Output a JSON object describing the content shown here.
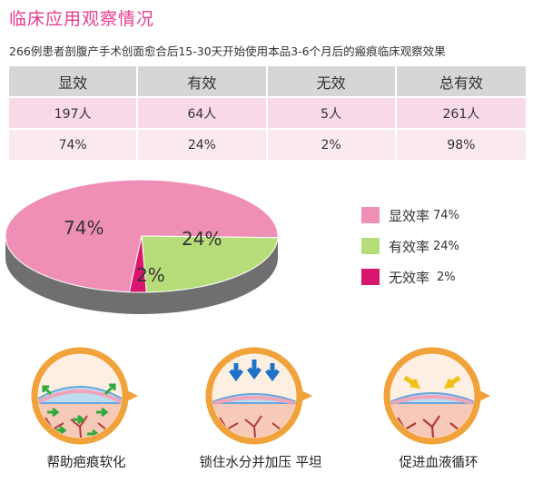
{
  "header": {
    "title": "临床应用观察情况",
    "subtitle": "266例患者剖腹产手术创面愈合后15-30天开始使用本品3-6个月后的瘢痕临床观察效果"
  },
  "table": {
    "columns": [
      "显效",
      "有效",
      "无效",
      "总有效"
    ],
    "rows": [
      [
        "197人",
        "64人",
        "5人",
        "261人"
      ],
      [
        "74%",
        "24%",
        "2%",
        "98%"
      ]
    ]
  },
  "chart_data": {
    "type": "pie",
    "slices": [
      {
        "label": "74%",
        "value": 74,
        "color": "#ef8fb6"
      },
      {
        "label": "24%",
        "value": 24,
        "color": "#b6dd7a"
      },
      {
        "label": "2%",
        "value": 2,
        "color": "#d8166e"
      }
    ],
    "legend": [
      {
        "name": "显效率",
        "value": "74%",
        "color": "#ef8fb6"
      },
      {
        "name": "有效率",
        "value": "24%",
        "color": "#b6dd7a"
      },
      {
        "name": "无效率",
        "value": "2%",
        "color": "#d8166e"
      }
    ],
    "legend_position": "right"
  },
  "icons": [
    {
      "icon": "scar-softening-icon",
      "label": "帮助疤痕软化"
    },
    {
      "icon": "pressure-lock-icon",
      "label": "锁住水分并加压 平坦"
    },
    {
      "icon": "blood-circulation-icon",
      "label": "促进血液循环"
    }
  ],
  "colors": {
    "title": "#e83d8e",
    "table_header": "#d6d6d6",
    "table_row_1": "#f8d9e7",
    "table_row_2": "#fbe9f1",
    "pie_shadow": "#6f6f6f",
    "icon_ring": "#f2a23a",
    "arrow_green": "#2eaa3a",
    "arrow_blue": "#1e73c8",
    "arrow_yellow": "#f2c21a"
  }
}
